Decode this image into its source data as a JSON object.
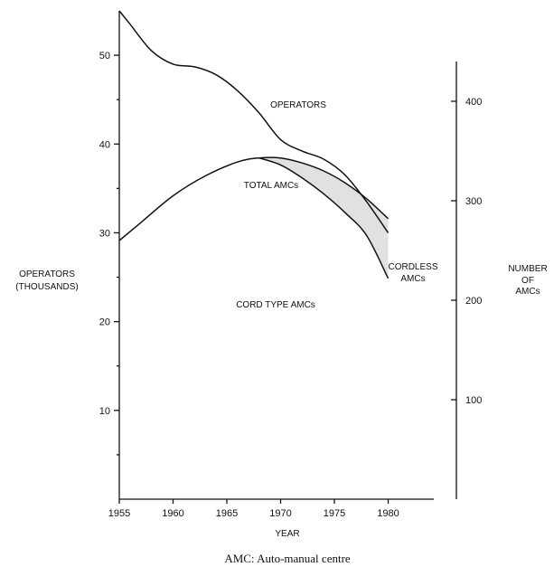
{
  "chart_data": {
    "type": "line",
    "title": "",
    "xlabel": "YEAR",
    "left_axis": {
      "label_lines": [
        "OPERATORS",
        "(THOUSANDS)"
      ],
      "ylim": [
        0,
        55
      ],
      "ticks": [
        10,
        20,
        30,
        40,
        50
      ]
    },
    "right_axis": {
      "label_lines": [
        "NUMBER",
        "OF",
        "AMCs"
      ],
      "ylim": [
        0,
        500
      ],
      "ticks": [
        100,
        200,
        300,
        400
      ]
    },
    "x_ticks": [
      1955,
      1960,
      1965,
      1970,
      1975,
      1980
    ],
    "xlim": [
      1955,
      1985
    ],
    "series": [
      {
        "name": "OPERATORS",
        "axis": "left",
        "x": [
          1955,
          1956,
          1958,
          1960,
          1962,
          1964,
          1966,
          1968,
          1970,
          1972,
          1974,
          1976,
          1978,
          1980
        ],
        "y": [
          55,
          53.5,
          50.5,
          49,
          48.7,
          47.8,
          46,
          43.5,
          40.5,
          39.2,
          38.3,
          36.5,
          33.5,
          30
        ]
      },
      {
        "name": "TOTAL AMCs",
        "axis": "right",
        "x": [
          1955,
          1957,
          1960,
          1963,
          1966,
          1968,
          1970,
          1972,
          1974,
          1976,
          1978,
          1980
        ],
        "y": [
          260,
          278,
          305,
          325,
          339,
          343,
          343,
          338,
          330,
          318,
          302,
          282
        ]
      },
      {
        "name": "CORD TYPE AMCs",
        "axis": "right",
        "x": [
          1968,
          1970,
          1972,
          1974,
          1976,
          1978,
          1980
        ],
        "y": [
          343,
          336,
          323,
          307,
          288,
          265,
          222
        ]
      }
    ],
    "annotations": {
      "cordless": [
        "CORDLESS",
        "AMCs"
      ],
      "cord_type": "CORD TYPE AMCs"
    },
    "caption": "AMC: Auto-manual centre"
  }
}
